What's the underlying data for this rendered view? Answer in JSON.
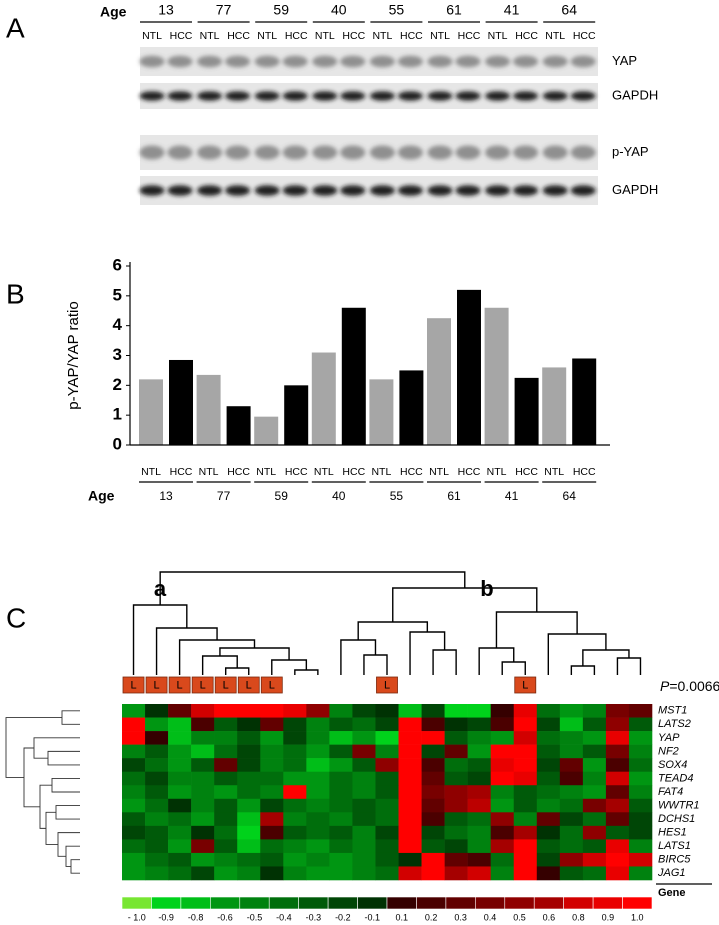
{
  "panel_labels": [
    "A",
    "B",
    "C"
  ],
  "blot": {
    "age_label": "Age",
    "ages": [
      "13",
      "77",
      "59",
      "40",
      "55",
      "61",
      "41",
      "64"
    ],
    "lanes": [
      "NTL",
      "HCC"
    ],
    "bands": [
      "YAP",
      "GAPDH",
      "p-YAP",
      "GAPDH"
    ]
  },
  "chart_data": [
    {
      "type": "bar",
      "ylabel": "p-YAP/YAP ratio",
      "xlabel": "Age",
      "categories": [
        "13",
        "77",
        "59",
        "40",
        "55",
        "61",
        "41",
        "64"
      ],
      "series": [
        {
          "name": "NTL",
          "color": "#a6a6a6",
          "values": [
            2.2,
            2.35,
            0.95,
            3.1,
            2.2,
            4.25,
            4.6,
            2.6
          ]
        },
        {
          "name": "HCC",
          "color": "#000000",
          "values": [
            2.85,
            1.3,
            2.0,
            4.6,
            2.5,
            5.2,
            2.25,
            2.9
          ]
        }
      ],
      "ylim": [
        0,
        6
      ],
      "yticks": [
        0,
        1,
        2,
        3,
        4,
        5,
        6
      ]
    },
    {
      "type": "heatmap",
      "row_title": "Gene",
      "clusters": [
        "a",
        "b"
      ],
      "marker": {
        "label": "L",
        "columns": [
          0,
          1,
          2,
          3,
          4,
          5,
          6,
          11,
          17
        ]
      },
      "p_value": {
        "symbol": "P",
        "text": "=0.0066"
      },
      "rows": [
        "MST1",
        "LATS2",
        "YAP",
        "NF2",
        "SOX4",
        "TEAD4",
        "FAT4",
        "WWTR1",
        "DCHS1",
        "HES1",
        "LATS1",
        "BIRC5",
        "JAG1"
      ],
      "values": [
        [
          -0.6,
          -0.1,
          0.3,
          0.8,
          1,
          1,
          1,
          0.9,
          0.5,
          -0.5,
          -0.2,
          -0.1,
          -0.8,
          -0.2,
          -0.9,
          -0.9,
          0.1,
          0.9,
          -0.4,
          -0.6,
          -0.5,
          0.4,
          0.3
        ],
        [
          1,
          -0.6,
          -0.8,
          0.2,
          -0.3,
          -0.1,
          0.3,
          -0.2,
          -0.5,
          -0.3,
          -0.4,
          -0.2,
          1,
          0.2,
          -0.1,
          -0.2,
          0.2,
          1,
          -0.2,
          -0.8,
          -0.3,
          0.5,
          -0.3
        ],
        [
          1,
          0.1,
          -0.8,
          -0.5,
          -0.5,
          -0.3,
          -0.6,
          -0.2,
          -0.5,
          -0.8,
          -0.6,
          -0.9,
          1,
          1,
          -0.3,
          -0.5,
          -0.6,
          0.8,
          -0.4,
          -0.5,
          -0.6,
          0.9,
          -0.6
        ],
        [
          -0.5,
          -0.3,
          -0.6,
          -0.8,
          -0.4,
          -0.2,
          -0.5,
          -0.4,
          -0.6,
          -0.3,
          0.4,
          -0.5,
          1,
          -0.2,
          0.3,
          -0.6,
          1,
          1,
          -0.3,
          -0.5,
          -0.3,
          0.4,
          -0.5
        ],
        [
          -0.2,
          -0.4,
          -0.6,
          -0.3,
          0.3,
          -0.2,
          -0.5,
          -0.4,
          -0.8,
          -0.6,
          -0.3,
          0.5,
          1,
          0.2,
          -0.4,
          -0.3,
          0.9,
          1,
          -0.2,
          0.3,
          -0.6,
          0.2,
          -0.4
        ],
        [
          -0.4,
          -0.2,
          -0.5,
          -0.5,
          -0.3,
          -0.4,
          -0.4,
          -0.6,
          -0.6,
          -0.4,
          -0.5,
          -0.3,
          1,
          0.3,
          -0.3,
          -0.2,
          1,
          0.9,
          -0.3,
          0.2,
          -0.5,
          0.8,
          -0.6
        ],
        [
          -0.5,
          -0.3,
          -0.6,
          -0.5,
          -0.6,
          -0.4,
          -0.5,
          1,
          -0.6,
          -0.4,
          -0.5,
          -0.3,
          1,
          0.4,
          0.5,
          0.6,
          -0.5,
          -0.3,
          -0.4,
          -0.5,
          -0.6,
          0.3,
          -0.5
        ],
        [
          -0.6,
          -0.4,
          -0.1,
          -0.5,
          -0.3,
          -0.6,
          -0.2,
          -0.4,
          -0.5,
          -0.4,
          -0.3,
          -0.4,
          1,
          0.3,
          0.5,
          0.7,
          -0.6,
          -0.3,
          -0.5,
          -0.4,
          0.4,
          0.6,
          -0.3
        ],
        [
          -0.3,
          -0.5,
          -0.4,
          -0.6,
          -0.3,
          -0.8,
          0.6,
          -0.5,
          -0.4,
          -0.5,
          -0.3,
          -0.4,
          1,
          0.2,
          -0.3,
          -0.4,
          0.5,
          -0.5,
          0.3,
          -0.2,
          -0.4,
          0.3,
          -0.2
        ],
        [
          -0.2,
          -0.3,
          -0.5,
          -0.1,
          -0.4,
          -0.9,
          0.2,
          -0.3,
          -0.4,
          -0.3,
          -0.5,
          -0.2,
          1,
          -0.2,
          -0.4,
          -0.5,
          0.2,
          0.6,
          -0.1,
          -0.4,
          0.5,
          -0.3,
          -0.2
        ],
        [
          -0.4,
          -0.3,
          -0.6,
          0.4,
          -0.3,
          -0.8,
          -0.4,
          -0.5,
          -0.6,
          -0.4,
          -0.5,
          -0.3,
          1,
          -0.3,
          -0.2,
          -0.5,
          0.6,
          1,
          -0.3,
          -0.4,
          -0.3,
          0.9,
          -0.5
        ],
        [
          -0.6,
          -0.4,
          -0.3,
          -0.6,
          -0.5,
          -0.4,
          -0.3,
          -0.6,
          -0.5,
          -0.6,
          -0.5,
          -0.3,
          -0.1,
          1,
          0.3,
          0.2,
          -0.4,
          1,
          -0.2,
          0.5,
          0.8,
          1,
          0.8
        ],
        [
          -0.6,
          -0.5,
          -0.4,
          -0.2,
          -0.6,
          -0.5,
          -0.1,
          -0.5,
          -0.6,
          -0.6,
          -0.5,
          -0.4,
          0.8,
          1,
          0.6,
          0.8,
          -0.5,
          1,
          0.1,
          -0.3,
          -0.4,
          0.9,
          -0.5
        ]
      ],
      "colorbar": [
        {
          "value": -1,
          "label": "- 1.0"
        },
        -0.9,
        -0.8,
        -0.6,
        -0.5,
        -0.4,
        -0.3,
        -0.2,
        -0.1,
        0.1,
        0.2,
        0.3,
        0.4,
        0.5,
        0.6,
        0.8,
        0.9,
        {
          "value": 1,
          "label": "1.0"
        }
      ]
    }
  ]
}
